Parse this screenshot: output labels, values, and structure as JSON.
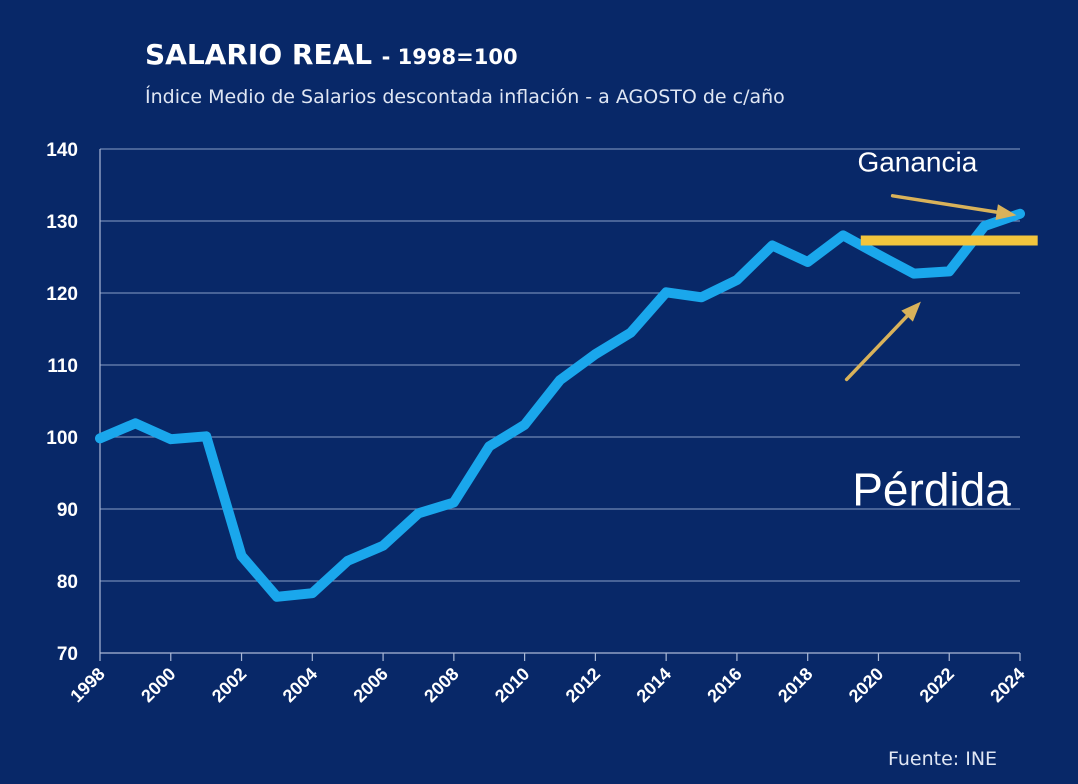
{
  "chart_data": {
    "type": "line",
    "title": "SALARIO REAL",
    "title_suffix": "- 1998=100",
    "subtitle": "Índice Medio de Salarios descontada inflación - a AGOSTO de c/año",
    "source": "Fuente: INE",
    "x": [
      1998,
      1999,
      2000,
      2001,
      2002,
      2003,
      2004,
      2005,
      2006,
      2007,
      2008,
      2009,
      2010,
      2011,
      2012,
      2013,
      2014,
      2015,
      2016,
      2017,
      2018,
      2019,
      2020,
      2021,
      2022,
      2023,
      2024
    ],
    "xticks": [
      "1998",
      "2000",
      "2002",
      "2004",
      "2006",
      "2008",
      "2010",
      "2012",
      "2014",
      "2016",
      "2018",
      "2020",
      "2022",
      "2024"
    ],
    "yticks": [
      "140",
      "130",
      "120",
      "110",
      "100",
      "90",
      "80",
      "70"
    ],
    "ylim": [
      70,
      140
    ],
    "grid": true,
    "series": [
      {
        "values": [
          99.8,
          101.9,
          99.7,
          100.1,
          83.5,
          77.8,
          78.3,
          82.8,
          84.9,
          89.4,
          90.9,
          98.7,
          101.7,
          107.9,
          111.5,
          114.5,
          120.1,
          119.4,
          121.8,
          126.6,
          124.3,
          128.0,
          125.3,
          122.7,
          123.0,
          129.3,
          131.0
        ],
        "color": "#1aa7ec"
      }
    ],
    "reference_line": {
      "y": 127.3,
      "x_from": 2019.5,
      "x_to": 2024.5,
      "color": "#f2c53d"
    },
    "annotations": [
      {
        "text": "Ganancia",
        "x": 2021.1,
        "y": 136.9,
        "style": "small"
      },
      {
        "text": "Pérdida",
        "x": 2021.5,
        "y": 90.5,
        "style": "big"
      }
    ],
    "arrows": [
      {
        "from": [
          2020.4,
          133.5
        ],
        "to": [
          2023.9,
          130.8
        ],
        "color": "#d9b25a"
      },
      {
        "from": [
          2019.1,
          108.0
        ],
        "to": [
          2021.2,
          118.8
        ],
        "color": "#d9b25a"
      }
    ]
  }
}
